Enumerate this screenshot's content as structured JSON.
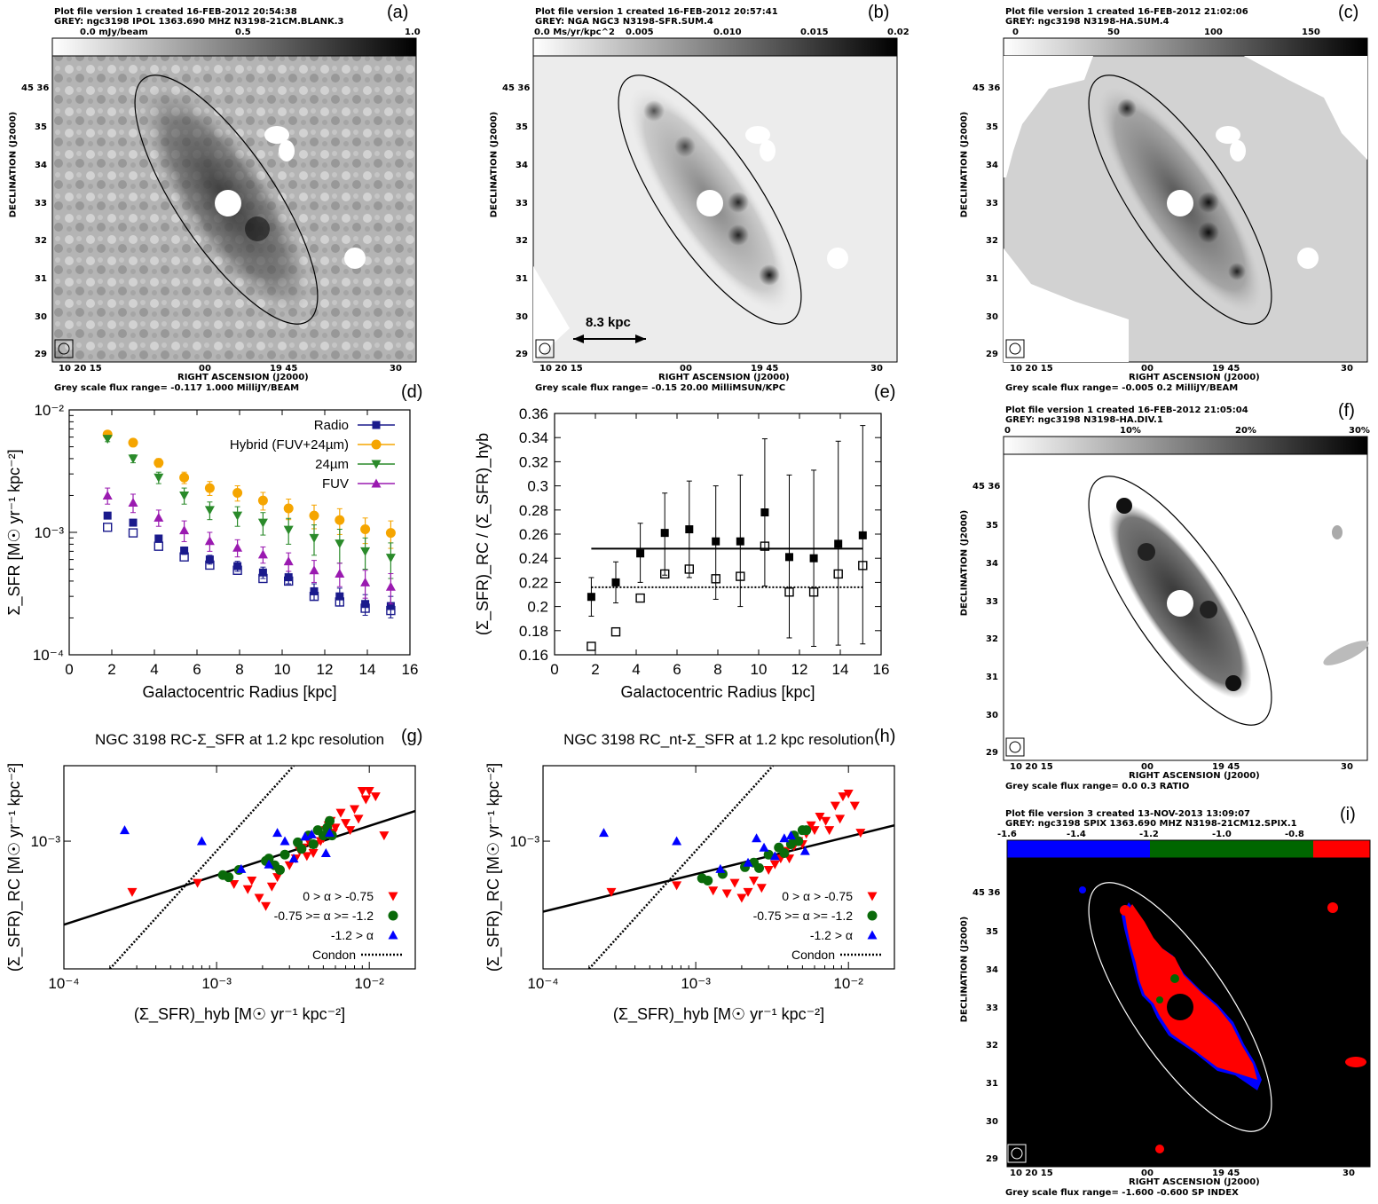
{
  "panels": {
    "a": {
      "letter": "(a)",
      "header1": "Plot file version 1  created 16-FEB-2012 20:54:38",
      "header2": "GREY: ngc3198  IPOL  1363.690 MHZ  N3198-21CM.BLANK.3",
      "scale_labels": [
        "0.0 mJy/beam",
        "0.5",
        "1.0"
      ],
      "footer": "Grey scale flux range= -0.117 1.000 MilliJY/BEAM"
    },
    "b": {
      "letter": "(b)",
      "header1": "Plot file version 1  created 16-FEB-2012 20:57:41",
      "header2": "GREY: NGA NGC3  N3198-SFR.SUM.4",
      "scale_labels": [
        "0.0 Ms/yr/kpc^2",
        "0.005",
        "0.010",
        "0.015",
        "0.02"
      ],
      "footer": "Grey scale flux range= -0.15 20.00 MilliMSUN/KPC",
      "scalebar": "8.3 kpc"
    },
    "c": {
      "letter": "(c)",
      "header1": "Plot file version 1  created 16-FEB-2012 21:02:06",
      "header2": "GREY: ngc3198   N3198-HA.SUM.4",
      "scale_labels": [
        "0",
        "50",
        "100",
        "150"
      ],
      "footer": "Grey scale flux range= -0.005 0.2 MilliJY/BEAM"
    },
    "f": {
      "letter": "(f)",
      "header1": "Plot file version 1  created 16-FEB-2012 21:05:04",
      "header2": "GREY: ngc3198   N3198-HA.DIV.1",
      "scale_labels": [
        "0",
        "10%",
        "20%",
        "30%"
      ],
      "footer": "Grey scale flux range= 0.0 0.3 RATIO"
    },
    "i": {
      "letter": "(i)",
      "header1": "Plot file version 3  created 13-NOV-2013 13:09:07",
      "header2": "GREY: ngc3198  SPIX  1363.690 MHZ  N3198-21CM12.SPIX.1",
      "scale_labels": [
        "-1.6",
        "-1.4",
        "-1.2",
        "-1.0",
        "-0.8"
      ],
      "footer": "Grey scale flux range= -1.600 -0.600 SP INDEX"
    },
    "d": {
      "letter": "(d)"
    },
    "e": {
      "letter": "(e)"
    },
    "g": {
      "letter": "(g)"
    },
    "h": {
      "letter": "(h)"
    }
  },
  "map_axes": {
    "xlabel": "RIGHT ASCENSION (J2000)",
    "ylabel": "DECLINATION (J2000)",
    "xticks": [
      "10 20 15",
      "00",
      "19 45",
      "30"
    ],
    "yticks": [
      "45 36",
      "35",
      "34",
      "33",
      "32",
      "31",
      "30",
      "29"
    ]
  },
  "chart_data": [
    {
      "id": "d",
      "type": "scatter",
      "yscale": "log",
      "xlabel": "Galactocentric Radius [kpc]",
      "ylabel": "Σ_SFR [M☉ yr⁻¹ kpc⁻²]",
      "xlim": [
        0,
        16
      ],
      "ylim": [
        0.0001,
        0.01
      ],
      "xticks": [
        "0",
        "2",
        "4",
        "6",
        "8",
        "10",
        "12",
        "14",
        "16"
      ],
      "yticks": [
        "10⁻⁴",
        "10⁻³",
        "10⁻²"
      ],
      "legend": "top-right",
      "series": [
        {
          "name": "Radio",
          "color": "#1a1a8c",
          "marker": "square",
          "x": [
            1.8,
            3.0,
            4.2,
            5.4,
            6.6,
            7.9,
            9.1,
            10.3,
            11.5,
            12.7,
            13.9,
            15.1
          ],
          "y": [
            0.00137,
            0.0012,
            0.00089,
            0.00071,
            0.0006,
            0.00053,
            0.00047,
            0.00043,
            0.00033,
            0.0003,
            0.00026,
            0.00025
          ],
          "yerr": [
            8e-05,
            7e-05,
            6e-05,
            5e-05,
            5e-05,
            5e-05,
            5e-05,
            5e-05,
            5e-05,
            5e-05,
            5e-05,
            5e-05
          ]
        },
        {
          "name": "Hybrid (FUV+24µm)",
          "color": "#f5a500",
          "marker": "circle",
          "x": [
            1.8,
            3.0,
            4.2,
            5.4,
            6.6,
            7.9,
            9.1,
            10.3,
            11.5,
            12.7,
            13.9,
            15.1
          ],
          "y": [
            0.0063,
            0.0054,
            0.0037,
            0.0028,
            0.0023,
            0.0021,
            0.00182,
            0.00157,
            0.00137,
            0.00126,
            0.00106,
            0.00099
          ],
          "yerr": [
            0.0003,
            0.0003,
            0.0003,
            0.0003,
            0.0003,
            0.0003,
            0.0003,
            0.0003,
            0.0003,
            0.0003,
            0.00025,
            0.00025
          ]
        },
        {
          "name": "24µm",
          "color": "#2a8a2a",
          "marker": "triangle-down",
          "x": [
            1.8,
            3.0,
            4.2,
            5.4,
            6.6,
            7.9,
            9.1,
            10.3,
            11.5,
            12.7,
            13.9,
            15.1
          ],
          "y": [
            0.0058,
            0.004,
            0.0028,
            0.002,
            0.00152,
            0.00137,
            0.0012,
            0.00105,
            0.0009,
            0.00081,
            0.0007,
            0.00062
          ],
          "yerr": [
            0.0003,
            0.0003,
            0.0003,
            0.0003,
            0.00025,
            0.00025,
            0.00025,
            0.00025,
            0.00025,
            0.00025,
            0.0002,
            0.0002
          ]
        },
        {
          "name": "FUV",
          "color": "#9a1ab0",
          "marker": "triangle-up",
          "x": [
            1.8,
            3.0,
            4.2,
            5.4,
            6.6,
            7.9,
            9.1,
            10.3,
            11.5,
            12.7,
            13.9,
            15.1
          ],
          "y": [
            0.002,
            0.00175,
            0.00132,
            0.00104,
            0.00085,
            0.00075,
            0.00066,
            0.00058,
            0.00049,
            0.00046,
            0.00039,
            0.00036
          ],
          "yerr": [
            0.0003,
            0.0003,
            0.0002,
            0.0002,
            0.00015,
            0.00012,
            0.0001,
            0.0001,
            0.0001,
            0.0001,
            0.0001,
            0.0001
          ]
        },
        {
          "name": "",
          "color": "#1a1a8c",
          "marker": "square-open",
          "x": [
            1.8,
            3.0,
            4.2,
            5.4,
            6.6,
            7.9,
            9.1,
            10.3,
            11.5,
            12.7,
            13.9,
            15.1
          ],
          "y": [
            0.0011,
            0.00099,
            0.00077,
            0.00063,
            0.00054,
            0.00049,
            0.00042,
            0.0004,
            0.0003,
            0.00027,
            0.00024,
            0.00023
          ]
        }
      ]
    },
    {
      "id": "e",
      "type": "scatter",
      "xlabel": "Galactocentric Radius [kpc]",
      "ylabel": "(Σ_SFR)_RC / (Σ_SFR)_hyb",
      "xlim": [
        0,
        16
      ],
      "ylim": [
        0.16,
        0.36
      ],
      "xticks": [
        "0",
        "2",
        "4",
        "6",
        "8",
        "10",
        "12",
        "14",
        "16"
      ],
      "yticks": [
        "0.16",
        "0.18",
        "0.2",
        "0.22",
        "0.24",
        "0.26",
        "0.28",
        "0.3",
        "0.32",
        "0.34",
        "0.36"
      ],
      "series": [
        {
          "name": "",
          "marker": "square",
          "x": [
            1.8,
            3.0,
            4.2,
            5.4,
            6.6,
            7.9,
            9.1,
            10.3,
            11.5,
            12.7,
            13.9,
            15.1
          ],
          "y": [
            0.208,
            0.22,
            0.244,
            0.261,
            0.264,
            0.254,
            0.254,
            0.278,
            0.241,
            0.24,
            0.252,
            0.259
          ],
          "ylo": [
            0.192,
            0.203,
            0.22,
            0.226,
            0.224,
            0.206,
            0.2,
            0.217,
            0.174,
            0.167,
            0.168,
            0.169
          ],
          "yhi": [
            0.224,
            0.237,
            0.269,
            0.294,
            0.304,
            0.3,
            0.309,
            0.339,
            0.309,
            0.313,
            0.337,
            0.35
          ]
        },
        {
          "name": "",
          "marker": "square-open",
          "x": [
            1.8,
            3.0,
            4.2,
            5.4,
            6.6,
            7.9,
            9.1,
            10.3,
            11.5,
            12.7,
            13.9,
            15.1
          ],
          "y": [
            0.167,
            0.179,
            0.207,
            0.227,
            0.231,
            0.223,
            0.225,
            0.25,
            0.212,
            0.212,
            0.227,
            0.234
          ]
        }
      ],
      "hlines": [
        {
          "y": 0.248,
          "style": "solid"
        },
        {
          "y": 0.216,
          "style": "dotted"
        }
      ]
    },
    {
      "id": "g",
      "type": "scatter",
      "xscale": "log",
      "yscale": "log",
      "title": "NGC 3198 RC-Σ_SFR at 1.2 kpc resolution",
      "xlabel": "(Σ_SFR)_hyb [M☉ yr⁻¹ kpc⁻²]",
      "ylabel": "(Σ_SFR)_RC [M☉ yr⁻¹ kpc⁻²]",
      "xlim": [
        0.0001,
        0.02
      ],
      "ylim": [
        0.00012,
        0.0035
      ],
      "xticks": [
        "10⁻⁴",
        "10⁻³",
        "10⁻²"
      ],
      "yticks": [
        "10⁻³"
      ],
      "legend": "bottom-right",
      "series": [
        {
          "name": "0 > α > -0.75",
          "color": "#ff0000",
          "marker": "triangle-down",
          "x": [
            0.00028,
            0.00075,
            0.0013,
            0.0016,
            0.0017,
            0.0019,
            0.0021,
            0.0023,
            0.0025,
            0.003,
            0.0033,
            0.0035,
            0.0037,
            0.0039,
            0.0041,
            0.0043,
            0.0045,
            0.0048,
            0.005,
            0.0052,
            0.0054,
            0.0056,
            0.0058,
            0.006,
            0.0065,
            0.007,
            0.0075,
            0.008,
            0.0085,
            0.009,
            0.0095,
            0.01,
            0.011,
            0.0125
          ],
          "y": [
            0.00043,
            0.0005,
            0.00049,
            0.00045,
            0.00052,
            0.00039,
            0.00034,
            0.00047,
            0.00055,
            0.00067,
            0.00075,
            0.00085,
            0.0009,
            0.00078,
            0.00095,
            0.00082,
            0.00095,
            0.001,
            0.00105,
            0.0012,
            0.0013,
            0.0014,
            0.00115,
            0.00125,
            0.0016,
            0.00135,
            0.0012,
            0.0017,
            0.00145,
            0.0023,
            0.002,
            0.0023,
            0.0021,
            0.0011
          ]
        },
        {
          "name": "-0.75 >= α >= -1.2",
          "color": "#0a6a0a",
          "marker": "circle",
          "x": [
            0.0011,
            0.0012,
            0.0014,
            0.0021,
            0.0022,
            0.0024,
            0.0026,
            0.0028,
            0.0034,
            0.0036,
            0.004,
            0.0043,
            0.0046,
            0.005,
            0.0053,
            0.0055,
            0.0057
          ],
          "y": [
            0.00057,
            0.00055,
            0.00062,
            0.00072,
            0.00075,
            0.00067,
            0.00062,
            0.0008,
            0.00098,
            0.00088,
            0.0011,
            0.00095,
            0.0012,
            0.0011,
            0.00125,
            0.0014,
            0.0011
          ]
        },
        {
          "name": "-1.2 > α",
          "color": "#0000ff",
          "marker": "triangle-up",
          "x": [
            0.00025,
            0.0008,
            0.00145,
            0.0022,
            0.0025,
            0.0028,
            0.0032,
            0.0038,
            0.0042,
            0.0052,
            0.0055
          ],
          "y": [
            0.0012,
            0.001,
            0.00063,
            0.00068,
            0.00115,
            0.001,
            0.00075,
            0.00108,
            0.00112,
            0.00082,
            0.00115
          ]
        }
      ],
      "lines": [
        {
          "name": "",
          "style": "solid",
          "x": [
            0.0001,
            0.02
          ],
          "y": [
            0.00025,
            0.00165
          ]
        },
        {
          "name": "Condon",
          "style": "dotted",
          "x": [
            0.0002,
            0.0032
          ],
          "y": [
            0.00012,
            0.0035
          ]
        }
      ]
    },
    {
      "id": "h",
      "type": "scatter",
      "xscale": "log",
      "yscale": "log",
      "title": "NGC 3198 RC_nt-Σ_SFR at 1.2 kpc resolution",
      "xlabel": "(Σ_SFR)_hyb [M☉ yr⁻¹ kpc⁻²]",
      "ylabel": "(Σ_SFR)_RC [M☉ yr⁻¹ kpc⁻²]",
      "xlim": [
        0.0001,
        0.02
      ],
      "ylim": [
        0.00012,
        0.0035
      ],
      "xticks": [
        "10⁻⁴",
        "10⁻³",
        "10⁻²"
      ],
      "yticks": [
        "10⁻³"
      ],
      "legend": "bottom-right",
      "series": [
        {
          "name": "0 > α > -0.75",
          "color": "#ff0000",
          "marker": "triangle-down",
          "x": [
            0.00028,
            0.00075,
            0.0013,
            0.0016,
            0.0018,
            0.002,
            0.0022,
            0.0024,
            0.0027,
            0.003,
            0.0033,
            0.0036,
            0.0039,
            0.0041,
            0.0044,
            0.0047,
            0.005,
            0.0053,
            0.0057,
            0.006,
            0.0065,
            0.0071,
            0.0075,
            0.0082,
            0.0088,
            0.0092,
            0.01,
            0.011,
            0.012
          ],
          "y": [
            0.00043,
            0.00048,
            0.00044,
            0.00042,
            0.0005,
            0.00039,
            0.00043,
            0.00052,
            0.00046,
            0.00062,
            0.00068,
            0.00075,
            0.00085,
            0.00075,
            0.00092,
            0.001,
            0.00095,
            0.00113,
            0.0013,
            0.0012,
            0.0015,
            0.0014,
            0.0012,
            0.0018,
            0.00145,
            0.0021,
            0.0022,
            0.0018,
            0.00115
          ]
        },
        {
          "name": "-0.75 >= α >= -1.2",
          "color": "#0a6a0a",
          "marker": "circle",
          "x": [
            0.0011,
            0.0012,
            0.0015,
            0.0021,
            0.0024,
            0.0026,
            0.003,
            0.0035,
            0.0038,
            0.0042,
            0.0044,
            0.0047,
            0.005,
            0.0053
          ],
          "y": [
            0.00054,
            0.00052,
            0.00058,
            0.00065,
            0.0007,
            0.00064,
            0.0008,
            0.0009,
            0.00082,
            0.00095,
            0.0011,
            0.001,
            0.0012,
            0.0012
          ]
        },
        {
          "name": "-1.2 > α",
          "color": "#0000ff",
          "marker": "triangle-up",
          "x": [
            0.00025,
            0.00075,
            0.00145,
            0.0022,
            0.0025,
            0.0028,
            0.0033,
            0.0038,
            0.0042,
            0.0052
          ],
          "y": [
            0.00115,
            0.001,
            0.00063,
            0.0007,
            0.00105,
            0.0009,
            0.00078,
            0.00105,
            0.0011,
            0.00085
          ]
        }
      ],
      "lines": [
        {
          "name": "",
          "style": "solid",
          "x": [
            0.0001,
            0.02
          ],
          "y": [
            0.00031,
            0.0013
          ]
        },
        {
          "name": "Condon",
          "style": "dotted",
          "x": [
            0.0002,
            0.0032
          ],
          "y": [
            0.00012,
            0.0035
          ]
        }
      ]
    }
  ]
}
